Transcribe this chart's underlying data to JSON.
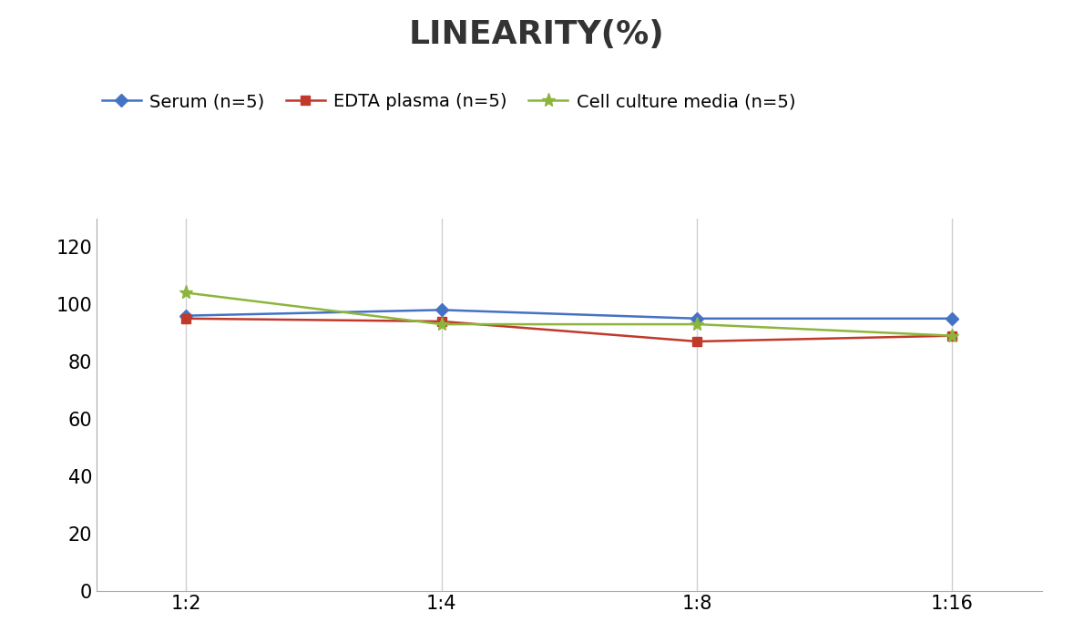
{
  "title": "LINEARITY(%)",
  "x_labels": [
    "1:2",
    "1:4",
    "1:8",
    "1:16"
  ],
  "series": [
    {
      "label": "Serum (n=5)",
      "values": [
        96,
        98,
        95,
        95
      ],
      "color": "#4472C4",
      "marker": "D",
      "marker_size": 7,
      "linewidth": 1.8
    },
    {
      "label": "EDTA plasma (n=5)",
      "values": [
        95,
        94,
        87,
        89
      ],
      "color": "#C0392B",
      "marker": "s",
      "marker_size": 7,
      "linewidth": 1.8
    },
    {
      "label": "Cell culture media (n=5)",
      "values": [
        104,
        93,
        93,
        89
      ],
      "color": "#8DB53C",
      "marker": "*",
      "marker_size": 11,
      "linewidth": 1.8
    }
  ],
  "ylim": [
    0,
    130
  ],
  "yticks": [
    0,
    20,
    40,
    60,
    80,
    100,
    120
  ],
  "background_color": "#ffffff",
  "grid_color": "#d0d0d0",
  "title_fontsize": 26,
  "tick_fontsize": 15,
  "legend_fontsize": 14
}
